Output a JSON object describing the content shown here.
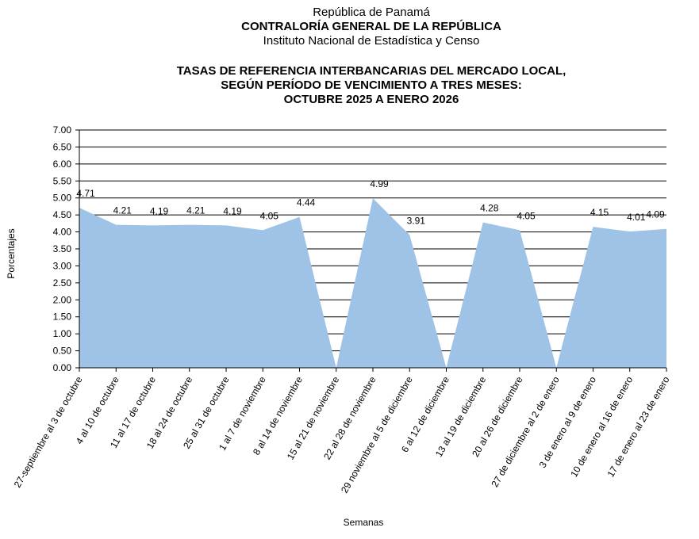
{
  "chart_data": {
    "type": "area",
    "header": [
      "República de Panamá",
      "CONTRALORÍA GENERAL DE LA REPÚBLICA",
      "Instituto Nacional de Estadística y Censo"
    ],
    "title": [
      "TASAS DE REFERENCIA INTERBANCARIAS DEL MERCADO LOCAL,",
      "SEGÚN PERÍODO DE VENCIMIENTO A TRES MESES:",
      "OCTUBRE 2025 A ENERO 2026"
    ],
    "x_label": "Semanas",
    "y_label": "Porcentajes",
    "categories": [
      "27-septiembre al 3 de octubre",
      "4 al 10 de octubre",
      "11 al 17 de octubre",
      "18 al 24 de octubre",
      "25 al 31 de octubre",
      "1 al 7 de noviembre",
      "8 al 14 de noviembre",
      "15 al 21 de noviembre",
      "22 al 28 de noviembre",
      "29 noviembre al 5 de diciembre",
      "6 al 12 de diciembre",
      "13 al 19 de diciembre",
      "20 al 26 de diciembre",
      "27 de diciembre al 2 de enero",
      "3 de enero al 9 de enero",
      "10 de enero al 16 de enero",
      "17 de enero al 23 de enero"
    ],
    "values": [
      4.71,
      4.21,
      4.19,
      4.21,
      4.19,
      4.05,
      4.44,
      0,
      4.99,
      3.91,
      0,
      4.28,
      4.05,
      0,
      4.15,
      4.01,
      4.09
    ],
    "color": "#9fc3e7",
    "ylim": [
      0,
      7
    ],
    "yticks": [
      {
        "value": 0,
        "label": "0.00"
      },
      {
        "value": 0.5,
        "label": "0.50"
      },
      {
        "value": 1,
        "label": "1.00"
      },
      {
        "value": 1.5,
        "label": "1.50"
      },
      {
        "value": 2,
        "label": "2.00"
      },
      {
        "value": 2.5,
        "label": "2.50"
      },
      {
        "value": 3,
        "label": "3.00"
      },
      {
        "value": 3.5,
        "label": "3.50"
      },
      {
        "value": 4,
        "label": "4.00"
      },
      {
        "value": 4.5,
        "label": "4.50"
      },
      {
        "value": 5,
        "label": "5.00"
      },
      {
        "value": 5.5,
        "label": "5.50"
      },
      {
        "value": 6,
        "label": "6.00"
      },
      {
        "value": 6.5,
        "label": "6.50"
      },
      {
        "value": 7,
        "label": "7.00"
      }
    ],
    "grid": true
  }
}
